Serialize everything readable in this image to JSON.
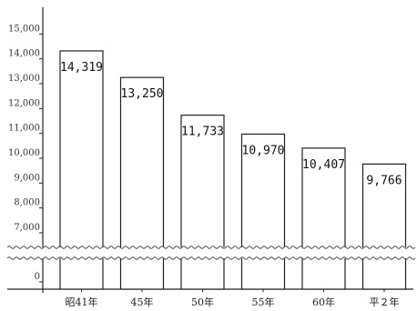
{
  "chart_data": {
    "type": "bar",
    "categories": [
      "昭41年",
      "45年",
      "50年",
      "55年",
      "60年",
      "平２年"
    ],
    "values": [
      14319,
      13250,
      11733,
      10970,
      10407,
      9766
    ],
    "value_labels": [
      "14,319",
      "13,250",
      "11,733",
      "10,970",
      "10,407",
      "9,766"
    ],
    "y_ticks": [
      0,
      7000,
      8000,
      9000,
      10000,
      11000,
      12000,
      13000,
      14000,
      15000
    ],
    "y_tick_labels": [
      "0",
      "7,000",
      "8,000",
      "9,000",
      "10,000",
      "11,000",
      "12,000",
      "13,000",
      "14,000",
      "15,000"
    ],
    "ylim": [
      0,
      15000
    ],
    "axis_break": [
      0,
      6500
    ],
    "grid": false,
    "title": "",
    "xlabel": "",
    "ylabel": ""
  }
}
